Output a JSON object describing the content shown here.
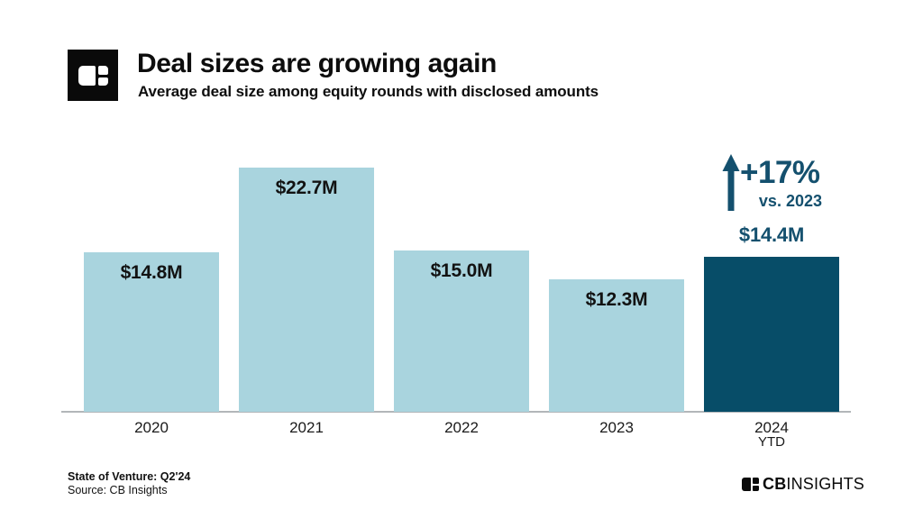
{
  "header": {
    "title": "Deal sizes are growing again",
    "subtitle": "Average deal size among equity rounds with disclosed amounts",
    "logo_icon": "cb-insights-window-icon"
  },
  "chart_data": {
    "type": "bar",
    "title": "Deal sizes are growing again",
    "subtitle": "Average deal size among equity rounds with disclosed amounts",
    "categories": [
      "2020",
      "2021",
      "2022",
      "2023",
      "2024"
    ],
    "category_sublabels": [
      "",
      "",
      "",
      "",
      "YTD"
    ],
    "values": [
      14.8,
      22.7,
      15.0,
      12.3,
      14.4
    ],
    "value_labels": [
      "$14.8M",
      "$22.7M",
      "$15.0M",
      "$12.3M",
      "$14.4M"
    ],
    "label_positions": [
      "inside",
      "inside",
      "inside",
      "inside",
      "above"
    ],
    "bar_colors": [
      "#a9d4de",
      "#a9d4de",
      "#a9d4de",
      "#a9d4de",
      "#074d68"
    ],
    "xlabel": "",
    "ylabel": "",
    "ylim": [
      0,
      24.9
    ],
    "grid": false,
    "y_axis_shown": false,
    "legend": "none",
    "annotation": {
      "delta": "+17%",
      "vs": "vs. 2023",
      "arrow": "up-arrow-icon"
    }
  },
  "colors": {
    "bar_light": "#a9d4de",
    "bar_dark": "#074d68",
    "annotation_blue": "#14506e",
    "axis_gray": "#b2b6b9",
    "text_black": "#0d0d0d"
  },
  "footer": {
    "report_line": "State of Venture: Q2'24",
    "source_line": "Source: CB Insights",
    "brand_cb": "CB",
    "brand_insights": "INSIGHTS",
    "brand_icon": "cb-insights-window-icon"
  }
}
